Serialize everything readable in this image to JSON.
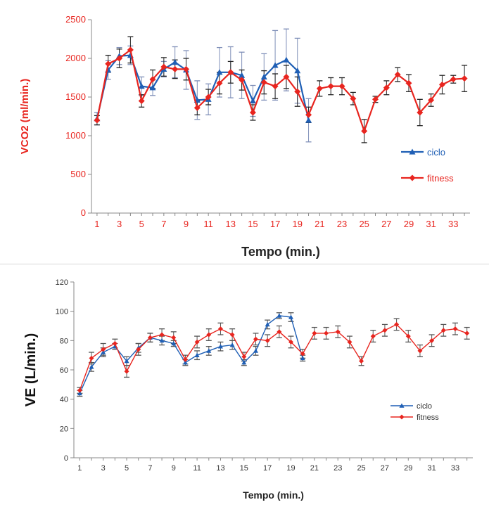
{
  "colors": {
    "ciclo": "#1f5fb5",
    "fitness": "#e8251f",
    "axis": "#888888",
    "red_text": "#e8251f"
  },
  "chart_data": [
    {
      "type": "line",
      "xlabel": "Tempo (min.)",
      "ylabel": "VCO2 (ml/min.)",
      "ylim": [
        0,
        2500
      ],
      "xlim": [
        1,
        34
      ],
      "yticks": [
        0,
        500,
        1000,
        1500,
        2000,
        2500
      ],
      "xticks": [
        1,
        3,
        5,
        7,
        9,
        11,
        13,
        15,
        17,
        19,
        21,
        23,
        25,
        27,
        29,
        31,
        33
      ],
      "grid": false,
      "legend_position": "right",
      "series": [
        {
          "name": "ciclo",
          "marker": "triangle",
          "x": [
            1,
            2,
            3,
            4,
            5,
            6,
            7,
            8,
            9,
            10,
            11,
            12,
            13,
            14,
            15,
            16,
            17,
            18,
            19,
            20
          ],
          "values": [
            1220,
            1850,
            2030,
            2040,
            1640,
            1620,
            1860,
            1950,
            1850,
            1460,
            1470,
            1820,
            1820,
            1780,
            1450,
            1760,
            1910,
            1980,
            1840,
            1200
          ],
          "errors": [
            80,
            120,
            110,
            120,
            120,
            100,
            100,
            200,
            250,
            250,
            200,
            320,
            330,
            300,
            200,
            300,
            450,
            400,
            420,
            280
          ]
        },
        {
          "name": "fitness",
          "marker": "diamond",
          "x": [
            1,
            2,
            3,
            4,
            5,
            6,
            7,
            8,
            9,
            10,
            11,
            12,
            13,
            14,
            15,
            16,
            17,
            18,
            19,
            20,
            21,
            22,
            23,
            24,
            25,
            26,
            27,
            28,
            29,
            30,
            31,
            32,
            33,
            34
          ],
          "values": [
            1200,
            1930,
            2000,
            2110,
            1450,
            1730,
            1890,
            1860,
            1860,
            1360,
            1500,
            1680,
            1820,
            1720,
            1300,
            1690,
            1640,
            1760,
            1570,
            1270,
            1610,
            1640,
            1640,
            1480,
            1060,
            1470,
            1620,
            1790,
            1680,
            1300,
            1460,
            1660,
            1730,
            1740
          ],
          "errors": [
            60,
            110,
            120,
            170,
            80,
            120,
            120,
            120,
            140,
            90,
            100,
            140,
            140,
            130,
            100,
            150,
            160,
            150,
            190,
            100,
            100,
            110,
            110,
            80,
            150,
            40,
            90,
            90,
            110,
            170,
            80,
            120,
            50,
            170
          ]
        }
      ]
    },
    {
      "type": "line",
      "xlabel": "Tempo (min.)",
      "ylabel": "VE (L/min.)",
      "ylim": [
        0,
        120
      ],
      "xlim": [
        1,
        34
      ],
      "yticks": [
        0,
        20,
        40,
        60,
        80,
        100,
        120
      ],
      "xticks": [
        1,
        3,
        5,
        7,
        9,
        11,
        13,
        15,
        17,
        19,
        21,
        23,
        25,
        27,
        29,
        31,
        33
      ],
      "grid": false,
      "legend_position": "right",
      "series": [
        {
          "name": "ciclo",
          "marker": "triangle",
          "x": [
            1,
            2,
            3,
            4,
            5,
            6,
            7,
            8,
            9,
            10,
            11,
            12,
            13,
            14,
            15,
            16,
            17,
            18,
            19,
            20
          ],
          "values": [
            44,
            62,
            72,
            76,
            66,
            75,
            82,
            80,
            78,
            65,
            70,
            73,
            76,
            77,
            65,
            73,
            91,
            97,
            96,
            68
          ],
          "errors": [
            2,
            3,
            3,
            2,
            3,
            3,
            3,
            3,
            2,
            2,
            3,
            3,
            3,
            3,
            2,
            3,
            3,
            2,
            3,
            2
          ]
        },
        {
          "name": "fitness",
          "marker": "diamond",
          "x": [
            1,
            2,
            3,
            4,
            5,
            6,
            7,
            8,
            9,
            10,
            11,
            12,
            13,
            14,
            15,
            16,
            17,
            18,
            19,
            20,
            21,
            22,
            23,
            24,
            25,
            26,
            27,
            28,
            29,
            30,
            31,
            32,
            33,
            34
          ],
          "values": [
            46,
            68,
            74,
            78,
            59,
            74,
            82,
            84,
            82,
            67,
            79,
            84,
            88,
            84,
            69,
            81,
            80,
            86,
            79,
            71,
            85,
            85,
            86,
            79,
            66,
            83,
            87,
            91,
            83,
            73,
            80,
            87,
            88,
            85
          ],
          "errors": [
            2,
            4,
            4,
            3,
            4,
            4,
            3,
            4,
            4,
            3,
            4,
            4,
            4,
            4,
            3,
            4,
            4,
            4,
            4,
            3,
            4,
            4,
            4,
            4,
            3,
            4,
            4,
            4,
            4,
            4,
            4,
            4,
            4,
            4
          ]
        }
      ]
    }
  ]
}
